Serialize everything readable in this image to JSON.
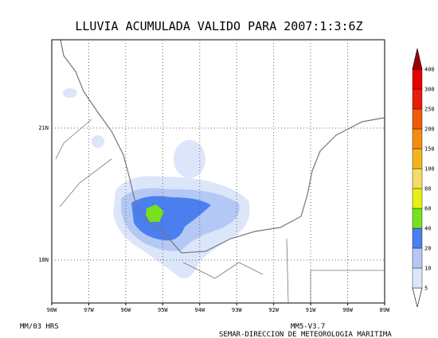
{
  "title": "LLUVIA ACUMULADA VALIDO PARA 2007:1:3:6Z",
  "map": {
    "lon_labels": [
      "98W",
      "97W",
      "96W",
      "95W",
      "94W",
      "93W",
      "92W",
      "91W",
      "90W",
      "89W"
    ],
    "lat_labels": [
      "21N",
      "18N"
    ]
  },
  "colorbar": {
    "labels": [
      "5",
      "10",
      "20",
      "40",
      "60",
      "80",
      "100",
      "150",
      "200",
      "250",
      "300",
      "400"
    ],
    "colors": [
      "#dce6fa",
      "#b4c8f5",
      "#4b7ff0",
      "#78e11e",
      "#e6f014",
      "#f5dc64",
      "#f5b41e",
      "#f58c14",
      "#f05a0a",
      "#e61e0a",
      "#e60000",
      "#a00000"
    ]
  },
  "footer": {
    "left": "MM/03 HRS",
    "model": "MM5-V3.7",
    "agency": "SEMAR-DIRECCION DE METEOROLOGIA MARITIMA"
  }
}
